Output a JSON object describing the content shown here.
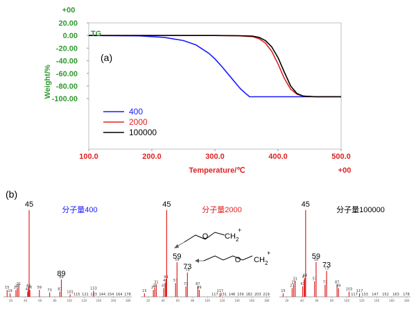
{
  "chart_data": [
    {
      "type": "line",
      "panel_label": "(a)",
      "title": "TG",
      "xlabel": "Temperature/℃",
      "ylabel": "Weight/%",
      "x_exponent_label": "+00",
      "y_exponent_label": "+00",
      "xlim": [
        100,
        500
      ],
      "ylim": [
        -180,
        20
      ],
      "x_ticks": [
        "100.0",
        "200.0",
        "300.0",
        "400.0",
        "500.0"
      ],
      "y_ticks": [
        "20.00",
        "0.00",
        "-20.00",
        "-40.00",
        "-60.00",
        "-80.00",
        "-100.00"
      ],
      "legend_position": "bottom-left",
      "series": [
        {
          "name": "400",
          "color": "#1a1aff",
          "x": [
            100,
            180,
            220,
            250,
            270,
            290,
            300,
            310,
            320,
            330,
            340,
            350,
            355,
            360,
            400,
            450,
            500
          ],
          "y": [
            0,
            -0.5,
            -3,
            -8,
            -15,
            -28,
            -37,
            -48,
            -60,
            -72,
            -84,
            -93,
            -97,
            -97,
            -97,
            -97,
            -97
          ]
        },
        {
          "name": "2000",
          "color": "#e02020",
          "x": [
            100,
            300,
            340,
            360,
            370,
            380,
            390,
            400,
            410,
            420,
            430,
            440,
            460,
            500
          ],
          "y": [
            0,
            0,
            -0.5,
            -2,
            -5,
            -12,
            -25,
            -45,
            -68,
            -85,
            -93,
            -96,
            -97,
            -97
          ]
        },
        {
          "name": "100000",
          "color": "#000000",
          "x": [
            100,
            300,
            340,
            360,
            370,
            380,
            390,
            400,
            410,
            420,
            430,
            440,
            460,
            500
          ],
          "y": [
            0,
            0,
            -0.3,
            -1,
            -3,
            -8,
            -18,
            -35,
            -58,
            -80,
            -92,
            -96,
            -97,
            -97
          ]
        }
      ]
    },
    {
      "type": "bar",
      "panel_label": "(b)",
      "label": "分子量400",
      "label_color": "#1a1aff",
      "base_peak": "45",
      "peaks": [
        {
          "mz": 15,
          "rel": 8
        },
        {
          "mz": 19,
          "rel": 4
        },
        {
          "mz": 27,
          "rel": 8
        },
        {
          "mz": 29,
          "rel": 10
        },
        {
          "mz": 31,
          "rel": 12
        },
        {
          "mz": 43,
          "rel": 6
        },
        {
          "mz": 44,
          "rel": 10
        },
        {
          "mz": 45,
          "rel": 100
        },
        {
          "mz": 46,
          "rel": 8
        },
        {
          "mz": 59,
          "rel": 8
        },
        {
          "mz": 73,
          "rel": 5
        },
        {
          "mz": 87,
          "rel": 6
        },
        {
          "mz": 89,
          "rel": 20
        },
        {
          "mz": 101,
          "rel": 3
        },
        {
          "mz": 133,
          "rel": 7
        }
      ],
      "annotated_peaks": [
        "45",
        "89"
      ],
      "minor_labels": [
        "115",
        "121",
        "133",
        "144",
        "154",
        "164",
        "178"
      ]
    },
    {
      "type": "bar",
      "label": "分子量2000",
      "label_color": "#e02020",
      "base_peak": "45",
      "peaks": [
        {
          "mz": 15,
          "rel": 4
        },
        {
          "mz": 27,
          "rel": 8
        },
        {
          "mz": 29,
          "rel": 10
        },
        {
          "mz": 31,
          "rel": 14
        },
        {
          "mz": 41,
          "rel": 10
        },
        {
          "mz": 43,
          "rel": 16
        },
        {
          "mz": 44,
          "rel": 20
        },
        {
          "mz": 45,
          "rel": 100
        },
        {
          "mz": 57,
          "rel": 16
        },
        {
          "mz": 59,
          "rel": 40
        },
        {
          "mz": 71,
          "rel": 12
        },
        {
          "mz": 73,
          "rel": 28
        },
        {
          "mz": 87,
          "rel": 12
        },
        {
          "mz": 89,
          "rel": 8
        },
        {
          "mz": 117,
          "rel": 4
        }
      ],
      "annotated_peaks": [
        "45",
        "59",
        "73"
      ],
      "fragments": [
        {
          "peak": "59",
          "formula_main": "O",
          "formula_end": "CH",
          "sub": "2",
          "charge": "+"
        },
        {
          "peak": "73",
          "formula_main": "O",
          "formula_end": "CH",
          "sub": "2",
          "charge": "+"
        }
      ],
      "minor_labels": [
        "117",
        "131",
        "146",
        "159",
        "182",
        "203",
        "219"
      ]
    },
    {
      "type": "bar",
      "label": "分子量100000",
      "label_color": "#000000",
      "base_peak": "45",
      "peaks": [
        {
          "mz": 15,
          "rel": 4
        },
        {
          "mz": 27,
          "rel": 10
        },
        {
          "mz": 29,
          "rel": 14
        },
        {
          "mz": 31,
          "rel": 18
        },
        {
          "mz": 41,
          "rel": 12
        },
        {
          "mz": 43,
          "rel": 20
        },
        {
          "mz": 44,
          "rel": 22
        },
        {
          "mz": 45,
          "rel": 100
        },
        {
          "mz": 57,
          "rel": 18
        },
        {
          "mz": 59,
          "rel": 40
        },
        {
          "mz": 71,
          "rel": 14
        },
        {
          "mz": 73,
          "rel": 30
        },
        {
          "mz": 87,
          "rel": 14
        },
        {
          "mz": 89,
          "rel": 10
        },
        {
          "mz": 103,
          "rel": 6
        },
        {
          "mz": 117,
          "rel": 4
        }
      ],
      "annotated_peaks": [
        "45",
        "59",
        "73"
      ],
      "minor_labels": [
        "117",
        "133",
        "147",
        "152",
        "163",
        "178"
      ]
    }
  ]
}
